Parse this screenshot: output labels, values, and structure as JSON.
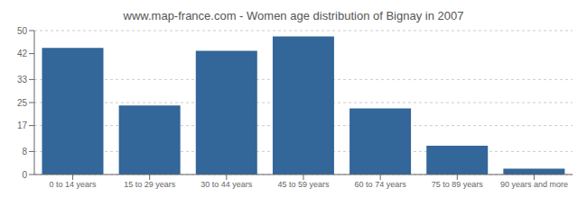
{
  "chart_data": {
    "type": "bar",
    "title": "www.map-france.com - Women age distribution of Bignay in 2007",
    "categories": [
      "0 to 14 years",
      "15 to 29 years",
      "30 to 44 years",
      "45 to 59 years",
      "60 to 74 years",
      "75 to 89 years",
      "90 years and more"
    ],
    "values": [
      44,
      24,
      43,
      48,
      23,
      10,
      2
    ],
    "color": "#336699",
    "ylim": [
      0,
      50
    ],
    "yticks": [
      0,
      8,
      17,
      25,
      33,
      42,
      50
    ],
    "grid": true
  }
}
